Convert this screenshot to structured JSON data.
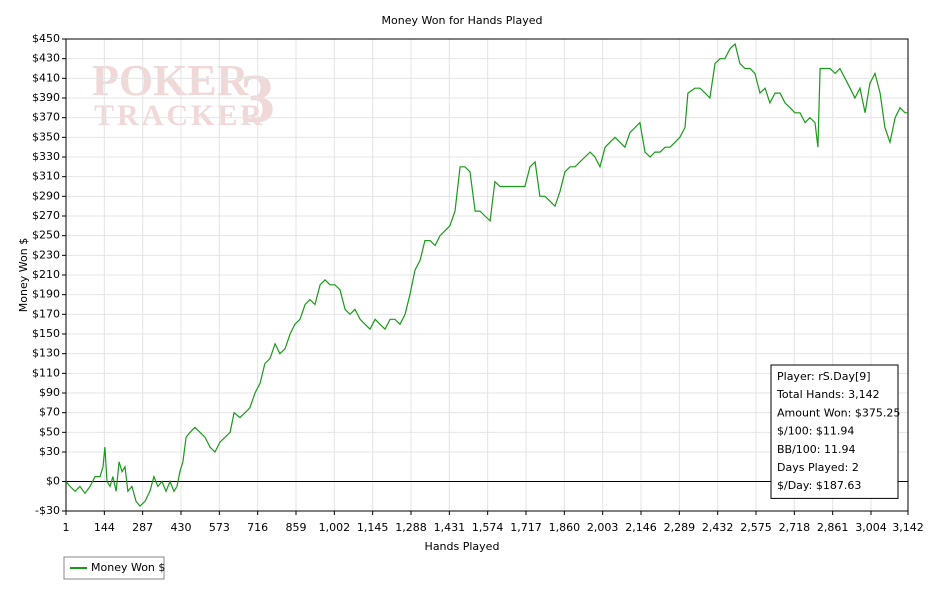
{
  "chart_data": {
    "type": "line",
    "title": "Money Won for Hands Played",
    "xlabel": "Hands Played",
    "ylabel": "Money Won $",
    "watermark": {
      "line1": "POKER",
      "line2": "TRACKER",
      "mark": "3"
    },
    "xlim": [
      1,
      3142
    ],
    "xticks": [
      1,
      144,
      287,
      430,
      573,
      716,
      859,
      {
        "value": 1002,
        "label": "1,002"
      },
      {
        "value": 1145,
        "label": "1,145"
      },
      {
        "value": 1288,
        "label": "1,288"
      },
      {
        "value": 1431,
        "label": "1,431"
      },
      {
        "value": 1574,
        "label": "1,574"
      },
      {
        "value": 1717,
        "label": "1,717"
      },
      {
        "value": 1860,
        "label": "1,860"
      },
      {
        "value": 2003,
        "label": "2,003"
      },
      {
        "value": 2146,
        "label": "2,146"
      },
      {
        "value": 2289,
        "label": "2,289"
      },
      {
        "value": 2432,
        "label": "2,432"
      },
      {
        "value": 2575,
        "label": "2,575"
      },
      {
        "value": 2718,
        "label": "2,718"
      },
      {
        "value": 2861,
        "label": "2,861"
      },
      {
        "value": 3004,
        "label": "3,004"
      },
      {
        "value": 3142,
        "label": "3,142"
      }
    ],
    "ylim": [
      -30,
      450
    ],
    "yticks": [
      {
        "value": -30,
        "label": "-$30"
      },
      {
        "value": 0,
        "label": "$0"
      },
      {
        "value": 30,
        "label": "$30"
      },
      {
        "value": 50,
        "label": "$50"
      },
      {
        "value": 70,
        "label": "$70"
      },
      {
        "value": 90,
        "label": "$90"
      },
      {
        "value": 110,
        "label": "$110"
      },
      {
        "value": 130,
        "label": "$130"
      },
      {
        "value": 150,
        "label": "$150"
      },
      {
        "value": 170,
        "label": "$170"
      },
      {
        "value": 190,
        "label": "$190"
      },
      {
        "value": 210,
        "label": "$210"
      },
      {
        "value": 230,
        "label": "$230"
      },
      {
        "value": 250,
        "label": "$250"
      },
      {
        "value": 270,
        "label": "$270"
      },
      {
        "value": 290,
        "label": "$290"
      },
      {
        "value": 310,
        "label": "$310"
      },
      {
        "value": 330,
        "label": "$330"
      },
      {
        "value": 350,
        "label": "$350"
      },
      {
        "value": 370,
        "label": "$370"
      },
      {
        "value": 390,
        "label": "$390"
      },
      {
        "value": 410,
        "label": "$410"
      },
      {
        "value": 430,
        "label": "$430"
      },
      {
        "value": 450,
        "label": "$450"
      }
    ],
    "grid": true,
    "x": [
      1,
      16,
      35,
      53,
      72,
      91,
      109,
      128,
      139,
      146,
      154,
      165,
      176,
      188,
      199,
      210,
      221,
      232,
      247,
      262,
      277,
      296,
      314,
      329,
      344,
      359,
      374,
      389,
      404,
      415,
      426,
      437,
      449,
      464,
      482,
      501,
      520,
      538,
      557,
      575,
      594,
      613,
      628,
      650,
      669,
      687,
      706,
      725,
      743,
      762,
      781,
      799,
      818,
      837,
      855,
      874,
      893,
      911,
      930,
      949,
      967,
      986,
      1004,
      1023,
      1042,
      1060,
      1079,
      1098,
      1116,
      1135,
      1154,
      1172,
      1191,
      1210,
      1228,
      1247,
      1266,
      1284,
      1303,
      1322,
      1340,
      1359,
      1378,
      1396,
      1415,
      1433,
      1452,
      1471,
      1489,
      1508,
      1527,
      1545,
      1564,
      1583,
      1601,
      1620,
      1639,
      1657,
      1676,
      1695,
      1713,
      1732,
      1751,
      1769,
      1788,
      1807,
      1825,
      1844,
      1862,
      1881,
      1900,
      1918,
      1937,
      1956,
      1974,
      1993,
      2012,
      2030,
      2049,
      2068,
      2086,
      2105,
      2124,
      2142,
      2161,
      2180,
      2198,
      2217,
      2236,
      2254,
      2273,
      2291,
      2310,
      2321,
      2347,
      2366,
      2385,
      2403,
      2422,
      2441,
      2459,
      2478,
      2497,
      2515,
      2534,
      2553,
      2571,
      2590,
      2609,
      2627,
      2646,
      2665,
      2683,
      2702,
      2720,
      2739,
      2758,
      2776,
      2795,
      2806,
      2814,
      2832,
      2851,
      2870,
      2888,
      2907,
      2926,
      2944,
      2963,
      2982,
      3000,
      3019,
      3038,
      3056,
      3075,
      3094,
      3112,
      3131,
      3142
    ],
    "series": [
      {
        "name": "Money Won $",
        "color": "#1a9a1a",
        "values": [
          0,
          -5,
          -10,
          -5,
          -12,
          -5,
          5,
          5,
          15,
          35,
          0,
          -5,
          5,
          -10,
          20,
          10,
          15,
          -10,
          -5,
          -20,
          -25,
          -20,
          -10,
          5,
          -5,
          0,
          -10,
          0,
          -10,
          -5,
          10,
          20,
          45,
          50,
          55,
          50,
          45,
          35,
          30,
          40,
          45,
          50,
          70,
          65,
          70,
          75,
          90,
          100,
          120,
          125,
          140,
          130,
          135,
          150,
          160,
          165,
          180,
          185,
          180,
          200,
          205,
          200,
          200,
          195,
          175,
          170,
          175,
          165,
          160,
          155,
          165,
          160,
          155,
          165,
          165,
          160,
          170,
          190,
          215,
          225,
          245,
          245,
          240,
          250,
          255,
          260,
          275,
          320,
          320,
          315,
          275,
          275,
          270,
          265,
          305,
          300,
          300,
          300,
          300,
          300,
          300,
          320,
          325,
          290,
          290,
          285,
          280,
          295,
          315,
          320,
          320,
          325,
          330,
          335,
          330,
          320,
          340,
          345,
          350,
          345,
          340,
          355,
          360,
          365,
          335,
          330,
          335,
          335,
          340,
          340,
          345,
          350,
          360,
          395,
          400,
          400,
          395,
          390,
          425,
          430,
          430,
          440,
          445,
          425,
          420,
          420,
          415,
          395,
          400,
          385,
          395,
          395,
          385,
          380,
          375,
          375,
          365,
          370,
          365,
          340,
          420,
          420,
          420,
          415,
          420,
          410,
          400,
          390,
          400,
          375,
          405,
          415,
          395,
          360,
          345,
          370,
          380,
          375,
          375
        ]
      }
    ],
    "stats": [
      "Player: rS.Day[9]",
      "Total Hands: 3,142",
      "Amount Won: $375.25",
      "$/100: $11.94",
      "BB/100: 11.94",
      "Days Played: 2",
      "$/Day: $187.63"
    ]
  }
}
